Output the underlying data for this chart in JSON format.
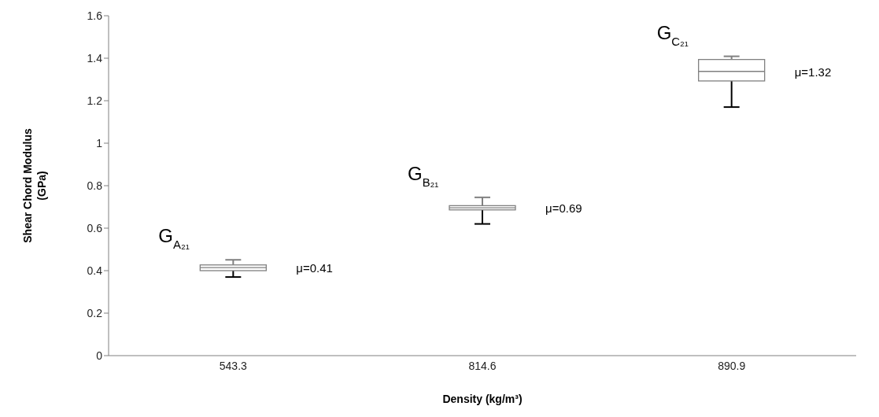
{
  "chart_data": {
    "type": "box",
    "xlabel": "Density (kg/m³)",
    "ylabel": "Shear Chord Modulus (GPa)",
    "categories": [
      "543.3",
      "814.6",
      "890.9"
    ],
    "color": "#808080",
    "boxes": [
      {
        "low": 0.37,
        "q1": 0.4,
        "median": 0.414,
        "q3": 0.427,
        "high": 0.451
      },
      {
        "low": 0.62,
        "q1": 0.686,
        "median": 0.696,
        "q3": 0.706,
        "high": 0.745
      },
      {
        "low": 1.17,
        "q1": 1.293,
        "median": 1.338,
        "q3": 1.394,
        "high": 1.409
      }
    ],
    "ylim": [
      0,
      1.6
    ],
    "yticks": [
      0,
      0.2,
      0.4,
      0.6,
      0.8,
      1,
      1.2,
      1.4,
      1.6
    ],
    "grid": false,
    "annotations": [
      {
        "text": "G$_{A₂₁}$",
        "x": "543.3",
        "y": 0.451
      },
      {
        "text": "G$_{B₂₁}$",
        "x": "814.6",
        "y": 0.745
      },
      {
        "text": "G$_{C₂₁}$",
        "x": "890.9",
        "y": 1.409
      },
      "μ=0.41",
      "μ=0.69",
      "μ=1.32"
    ]
  }
}
